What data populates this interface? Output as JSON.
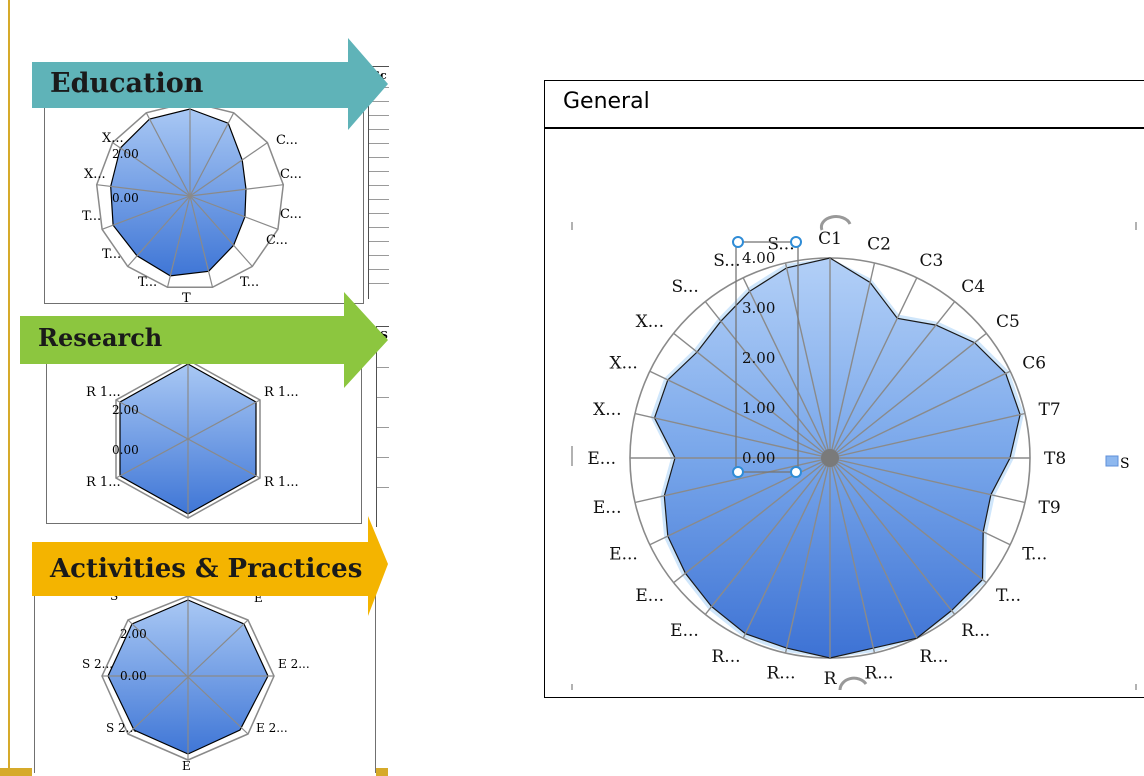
{
  "colors": {
    "education_banner": "#5fb3b8",
    "research_banner": "#8cc63f",
    "activities_banner": "#f4b400",
    "chart_fill": "#6d9fe8",
    "chart_grid": "#8a8a8a",
    "left_rule": "#d6aa2a",
    "handle": "#2f8cd6"
  },
  "sections": [
    {
      "title": "Education",
      "table_header": "Sc",
      "radar": {
        "categories": [
          "",
          "C...",
          "C...",
          "C...",
          "C...",
          "T...",
          "T",
          "T...",
          "T...",
          "T...",
          "X...",
          "X...",
          ""
        ],
        "ticks": [
          "2.00",
          "0.00"
        ]
      }
    },
    {
      "title": "Research",
      "table_header": "S",
      "radar": {
        "categories": [
          "",
          "R 1...",
          "R 1...",
          "",
          "R 1...",
          "R 1..."
        ],
        "ticks": [
          "2.00",
          "0.00"
        ]
      }
    },
    {
      "title": "Activities & Practices",
      "radar": {
        "categories": [
          "S",
          "E",
          "E 2...",
          "E 2...",
          "E",
          "S 2...",
          "S 2...",
          "S 2..."
        ],
        "ticks": [
          "2.00",
          "0.00"
        ]
      }
    }
  ],
  "general": {
    "title": "General",
    "legend_label": "S",
    "chart_data": {
      "type": "radar",
      "categories": [
        "C1",
        "C2",
        "C3",
        "C4",
        "C5",
        "C6",
        "T7",
        "T8",
        "T9",
        "T...",
        "T...",
        "R...",
        "R...",
        "R...",
        "R",
        "R...",
        "R...",
        "E...",
        "E...",
        "E...",
        "E...",
        "E...",
        "X...",
        "X...",
        "X...",
        "S...",
        "S...",
        "S..."
      ],
      "series": [
        {
          "values": [
            4.0,
            3.6,
            3.1,
            3.4,
            3.7,
            3.9,
            3.9,
            3.6,
            3.3,
            3.4,
            3.9,
            3.9,
            4.0,
            3.9,
            4.0,
            3.9,
            3.9,
            3.8,
            3.7,
            3.6,
            3.4,
            3.1,
            3.6,
            3.6,
            3.4,
            3.5,
            3.7,
            3.9
          ]
        }
      ],
      "ticks": [
        "0.00",
        "1.00",
        "2.00",
        "3.00",
        "4.00"
      ],
      "rlim": [
        0,
        4
      ]
    }
  }
}
